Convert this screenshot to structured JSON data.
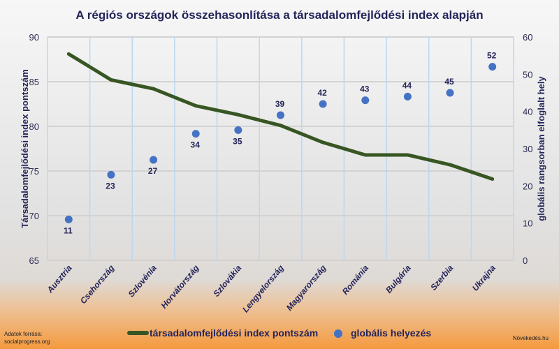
{
  "chart_data": {
    "type": "line+scatter",
    "title": "A régiós országok összehasonlítása a társadalomfejlődési index alapján",
    "categories": [
      "Ausztria",
      "Csehország",
      "Szlovénia",
      "Horvátország",
      "Szlovákia",
      "Lengyelország",
      "Magyarország",
      "Románia",
      "Bulgária",
      "Szerbia",
      "Ukrajna"
    ],
    "series": [
      {
        "name": "társadalomfejlődési index pontszám",
        "type": "line",
        "axis": "left",
        "color": "#375623",
        "values": [
          88.1,
          85.2,
          84.2,
          82.3,
          81.3,
          80.1,
          78.2,
          76.8,
          76.8,
          75.7,
          74.1
        ]
      },
      {
        "name": "globális helyezés",
        "type": "scatter",
        "axis": "right",
        "color": "#4472c4",
        "values": [
          11,
          23,
          27,
          34,
          35,
          39,
          42,
          43,
          44,
          45,
          52
        ]
      }
    ],
    "ylabel": "Társadalomfejlődési index pontszám",
    "y2label": "globális rangsorban elfoglalt hely",
    "ylim": [
      65,
      90
    ],
    "y2lim": [
      0,
      60
    ],
    "yticks": [
      65,
      70,
      75,
      80,
      85,
      90
    ],
    "y2ticks": [
      0,
      10,
      20,
      30,
      40,
      50,
      60
    ],
    "grid": true,
    "legend": "bottom"
  },
  "footer": {
    "source_line1": "Adatok forrása:",
    "source_line2": "socialprogress.org",
    "brand": "Növekedés.hu"
  }
}
